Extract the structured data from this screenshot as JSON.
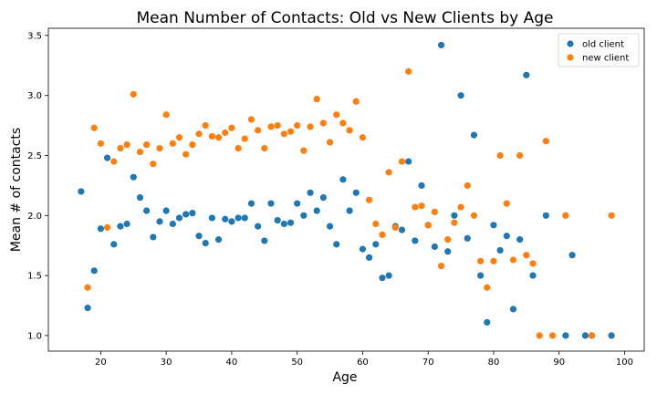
{
  "chart_data": {
    "type": "scatter",
    "title": "Mean Number of Contacts: Old vs New Clients by Age",
    "xlabel": "Age",
    "ylabel": "Mean # of contacts",
    "xlim": [
      12,
      103
    ],
    "ylim": [
      0.87,
      3.56
    ],
    "xticks": [
      20,
      30,
      40,
      50,
      60,
      70,
      80,
      90,
      100
    ],
    "yticks": [
      1.0,
      1.5,
      2.0,
      2.5,
      3.0,
      3.5
    ],
    "legend_position": "top-right",
    "grid": false,
    "series": [
      {
        "name": "old client",
        "color": "#1f77b4",
        "points": [
          [
            17,
            2.2
          ],
          [
            18,
            1.23
          ],
          [
            19,
            1.54
          ],
          [
            20,
            1.89
          ],
          [
            21,
            2.48
          ],
          [
            22,
            1.76
          ],
          [
            23,
            1.91
          ],
          [
            24,
            1.93
          ],
          [
            25,
            2.32
          ],
          [
            26,
            2.15
          ],
          [
            27,
            2.04
          ],
          [
            28,
            1.82
          ],
          [
            29,
            1.95
          ],
          [
            30,
            2.04
          ],
          [
            31,
            1.93
          ],
          [
            32,
            1.98
          ],
          [
            33,
            2.01
          ],
          [
            34,
            2.02
          ],
          [
            35,
            1.83
          ],
          [
            36,
            1.77
          ],
          [
            37,
            1.98
          ],
          [
            38,
            1.8
          ],
          [
            39,
            1.97
          ],
          [
            40,
            1.95
          ],
          [
            41,
            1.98
          ],
          [
            42,
            1.98
          ],
          [
            43,
            2.1
          ],
          [
            44,
            1.91
          ],
          [
            45,
            1.79
          ],
          [
            46,
            2.1
          ],
          [
            47,
            1.96
          ],
          [
            48,
            1.93
          ],
          [
            49,
            1.94
          ],
          [
            50,
            2.1
          ],
          [
            51,
            2.0
          ],
          [
            52,
            2.19
          ],
          [
            53,
            2.04
          ],
          [
            54,
            2.15
          ],
          [
            55,
            1.91
          ],
          [
            56,
            1.76
          ],
          [
            57,
            2.3
          ],
          [
            58,
            2.04
          ],
          [
            59,
            2.19
          ],
          [
            60,
            1.72
          ],
          [
            61,
            1.65
          ],
          [
            62,
            1.76
          ],
          [
            63,
            1.48
          ],
          [
            64,
            1.5
          ],
          [
            65,
            1.91
          ],
          [
            66,
            1.88
          ],
          [
            67,
            2.45
          ],
          [
            68,
            1.79
          ],
          [
            69,
            2.25
          ],
          [
            70,
            1.92
          ],
          [
            71,
            1.74
          ],
          [
            72,
            3.42
          ],
          [
            73,
            1.7
          ],
          [
            74,
            2.0
          ],
          [
            75,
            3.0
          ],
          [
            76,
            1.81
          ],
          [
            77,
            2.67
          ],
          [
            78,
            1.5
          ],
          [
            79,
            1.11
          ],
          [
            80,
            1.92
          ],
          [
            81,
            1.71
          ],
          [
            82,
            1.83
          ],
          [
            83,
            1.22
          ],
          [
            84,
            1.8
          ],
          [
            85,
            3.17
          ],
          [
            86,
            1.5
          ],
          [
            88,
            2.0
          ],
          [
            91,
            1.0
          ],
          [
            92,
            1.67
          ],
          [
            94,
            1.0
          ],
          [
            95,
            1.0
          ],
          [
            98,
            1.0
          ]
        ]
      },
      {
        "name": "new client",
        "color": "#ff7f0e",
        "points": [
          [
            18,
            1.4
          ],
          [
            19,
            2.73
          ],
          [
            20,
            2.6
          ],
          [
            21,
            1.9
          ],
          [
            22,
            2.45
          ],
          [
            23,
            2.56
          ],
          [
            24,
            2.59
          ],
          [
            25,
            3.01
          ],
          [
            26,
            2.53
          ],
          [
            27,
            2.59
          ],
          [
            28,
            2.43
          ],
          [
            29,
            2.56
          ],
          [
            30,
            2.84
          ],
          [
            31,
            2.6
          ],
          [
            32,
            2.65
          ],
          [
            33,
            2.51
          ],
          [
            34,
            2.59
          ],
          [
            35,
            2.68
          ],
          [
            36,
            2.75
          ],
          [
            37,
            2.66
          ],
          [
            38,
            2.65
          ],
          [
            39,
            2.69
          ],
          [
            40,
            2.73
          ],
          [
            41,
            2.56
          ],
          [
            42,
            2.64
          ],
          [
            43,
            2.8
          ],
          [
            44,
            2.71
          ],
          [
            45,
            2.56
          ],
          [
            46,
            2.74
          ],
          [
            47,
            2.75
          ],
          [
            48,
            2.68
          ],
          [
            49,
            2.7
          ],
          [
            50,
            2.75
          ],
          [
            51,
            2.54
          ],
          [
            52,
            2.74
          ],
          [
            53,
            2.97
          ],
          [
            54,
            2.77
          ],
          [
            55,
            2.61
          ],
          [
            56,
            2.84
          ],
          [
            57,
            2.77
          ],
          [
            58,
            2.71
          ],
          [
            59,
            2.95
          ],
          [
            60,
            2.65
          ],
          [
            61,
            2.13
          ],
          [
            62,
            1.93
          ],
          [
            63,
            1.84
          ],
          [
            64,
            2.36
          ],
          [
            65,
            1.9
          ],
          [
            66,
            2.45
          ],
          [
            67,
            3.2
          ],
          [
            68,
            2.07
          ],
          [
            69,
            2.08
          ],
          [
            70,
            1.92
          ],
          [
            71,
            2.03
          ],
          [
            72,
            1.58
          ],
          [
            73,
            1.8
          ],
          [
            74,
            1.94
          ],
          [
            75,
            2.07
          ],
          [
            76,
            2.25
          ],
          [
            77,
            2.0
          ],
          [
            78,
            1.62
          ],
          [
            79,
            1.4
          ],
          [
            80,
            1.62
          ],
          [
            81,
            2.5
          ],
          [
            82,
            2.1
          ],
          [
            83,
            1.63
          ],
          [
            84,
            2.5
          ],
          [
            85,
            1.67
          ],
          [
            86,
            1.6
          ],
          [
            87,
            1.0
          ],
          [
            88,
            2.62
          ],
          [
            89,
            1.0
          ],
          [
            91,
            2.0
          ],
          [
            95,
            1.0
          ],
          [
            98,
            2.0
          ]
        ]
      }
    ]
  }
}
